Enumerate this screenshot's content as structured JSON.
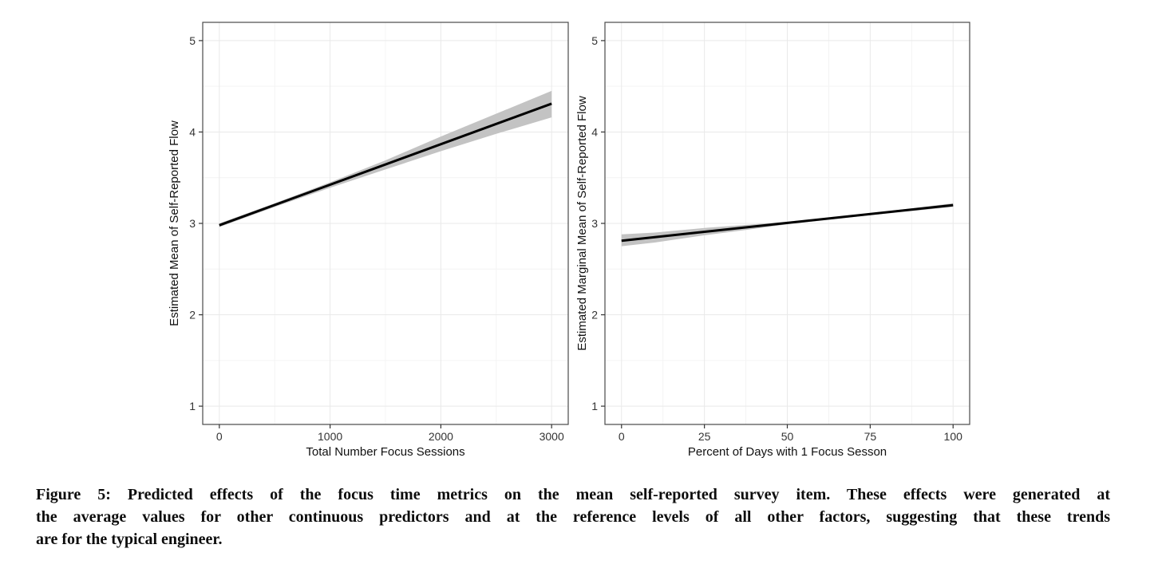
{
  "page": {
    "background": "#ffffff"
  },
  "caption": {
    "lines": [
      "Figure 5: Predicted effects of the focus time metrics on the mean self-reported survey item. These effects were generated at",
      "the average values for other continuous predictors and at the reference levels of all other factors, suggesting that these trends",
      "are for the typical engineer."
    ]
  },
  "chart_data": [
    {
      "type": "line",
      "title": "",
      "xlabel": "Total Number Focus Sessions",
      "ylabel": "Estimated Mean of Self-Reported Flow",
      "xlim": [
        0,
        3000
      ],
      "ylim": [
        1,
        5
      ],
      "xticks": [
        0,
        1000,
        2000,
        3000
      ],
      "xtick_labels": [
        "0",
        "1000",
        "2000",
        "3000"
      ],
      "yticks": [
        1,
        2,
        3,
        4,
        5
      ],
      "ytick_labels": [
        "1",
        "2",
        "3",
        "4",
        "5"
      ],
      "x_minor_ticks": [
        500,
        1500,
        2500
      ],
      "y_minor_ticks": [
        1.5,
        2.5,
        3.5,
        4.5
      ],
      "grid": true,
      "legend": "none",
      "series": [
        {
          "name": "predicted-mean-flow",
          "x": [
            0,
            3000
          ],
          "y": [
            2.98,
            4.31
          ]
        }
      ],
      "ribbon": {
        "x": [
          0,
          500,
          1000,
          1500,
          2000,
          2500,
          3000
        ],
        "upper": [
          3.0,
          3.22,
          3.45,
          3.69,
          3.95,
          4.2,
          4.45
        ],
        "lower": [
          2.96,
          3.18,
          3.39,
          3.59,
          3.79,
          3.98,
          4.16
        ]
      },
      "colors": {
        "line": "#000000",
        "ribbon": "#c3c3c3",
        "grid_major": "#e9e9e9",
        "grid_minor": "#f4f4f4",
        "border": "#4a4a4a",
        "tick": "#333333"
      }
    },
    {
      "type": "line",
      "title": "",
      "xlabel": "Percent of Days with 1 Focus Sesson",
      "ylabel": "Estimated Marginal Mean of Self-Reported Flow",
      "xlim": [
        0,
        100
      ],
      "ylim": [
        1,
        5
      ],
      "xticks": [
        0,
        25,
        50,
        75,
        100
      ],
      "xtick_labels": [
        "0",
        "25",
        "50",
        "75",
        "100"
      ],
      "yticks": [
        1,
        2,
        3,
        4,
        5
      ],
      "ytick_labels": [
        "1",
        "2",
        "3",
        "4",
        "5"
      ],
      "x_minor_ticks": [
        12.5,
        37.5,
        62.5,
        87.5
      ],
      "y_minor_ticks": [
        1.5,
        2.5,
        3.5,
        4.5
      ],
      "grid": true,
      "legend": "none",
      "series": [
        {
          "name": "predicted-marginal-mean-flow",
          "x": [
            0,
            100
          ],
          "y": [
            2.81,
            3.2
          ]
        }
      ],
      "ribbon": {
        "x": [
          0,
          10,
          25,
          40,
          50,
          60,
          75,
          100
        ],
        "upper": [
          2.88,
          2.9,
          2.95,
          2.99,
          3.02,
          3.05,
          3.11,
          3.22
        ],
        "lower": [
          2.75,
          2.79,
          2.87,
          2.94,
          2.99,
          3.03,
          3.09,
          3.18
        ]
      },
      "colors": {
        "line": "#000000",
        "ribbon": "#c3c3c3",
        "grid_major": "#e9e9e9",
        "grid_minor": "#f4f4f4",
        "border": "#4a4a4a",
        "tick": "#333333"
      }
    }
  ]
}
